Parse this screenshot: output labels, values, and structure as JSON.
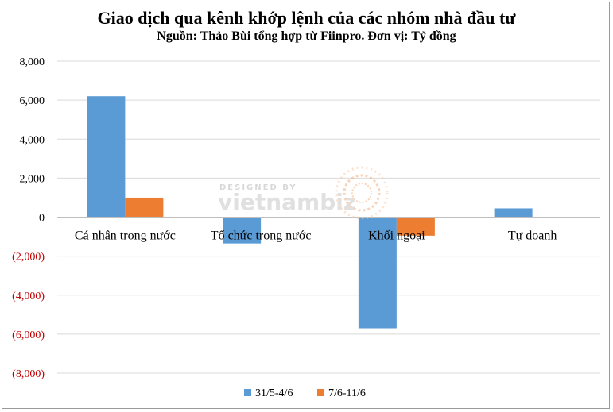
{
  "chart_data": {
    "type": "bar",
    "title": "Giao dịch qua kênh khớp lệnh của các nhóm nhà đầu tư",
    "subtitle": "Nguồn: Thảo Bùi tổng hợp từ Fiinpro. Đơn vị: Tỷ đồng",
    "categories": [
      "Cá nhân trong nước",
      "Tổ chức trong nước",
      "Khối ngoại",
      "Tự doanh"
    ],
    "series": [
      {
        "name": "31/5-4/6",
        "color": "#5B9BD5",
        "values": [
          6200,
          -1350,
          -5700,
          450
        ]
      },
      {
        "name": "7/6-11/6",
        "color": "#ED7D31",
        "values": [
          1000,
          -50,
          -950,
          -30
        ]
      }
    ],
    "ylim": [
      -8000,
      8000
    ],
    "yticks": [
      {
        "value": 8000,
        "label": "8,000"
      },
      {
        "value": 6000,
        "label": "6,000"
      },
      {
        "value": 4000,
        "label": "4,000"
      },
      {
        "value": 2000,
        "label": "2,000"
      },
      {
        "value": 0,
        "label": "0"
      },
      {
        "value": -2000,
        "label": "(2,000)"
      },
      {
        "value": -4000,
        "label": "(4,000)"
      },
      {
        "value": -6000,
        "label": "(6,000)"
      },
      {
        "value": -8000,
        "label": "(8,000)"
      }
    ],
    "positive_tick_color": "#000000",
    "negative_tick_color": "#C00000",
    "grid": true,
    "legend_position": "bottom"
  },
  "watermark": {
    "top": "DESIGNED BY",
    "brand": "vietnambiz"
  }
}
